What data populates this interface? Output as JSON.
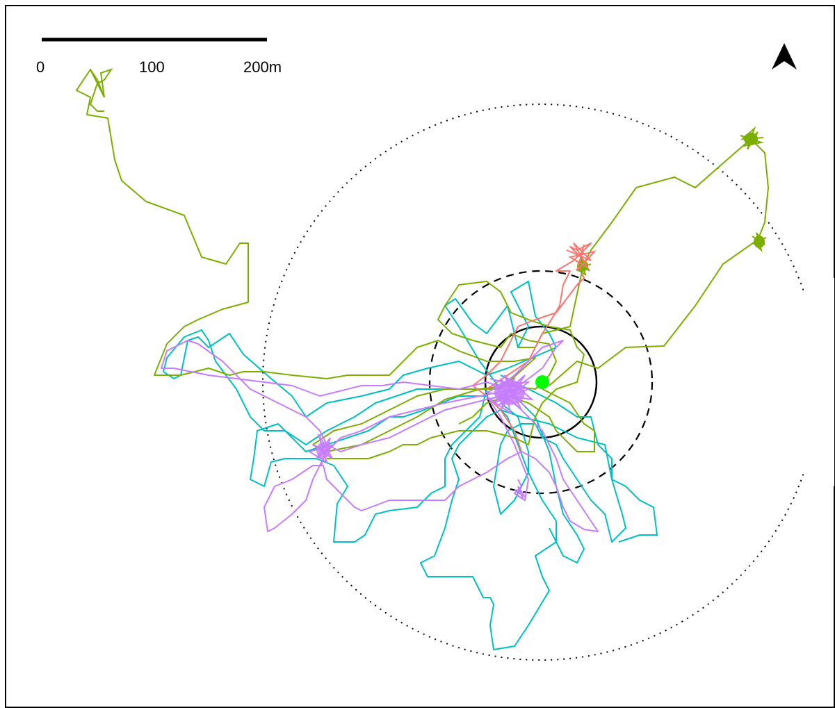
{
  "scale_bar": {
    "labels": [
      "0",
      "100",
      "200m"
    ]
  },
  "north_arrow": {
    "icon": "north-arrow-icon"
  },
  "colors": {
    "track_red": "#F8766D",
    "track_olive": "#7CAE00",
    "track_cyan": "#00BFC4",
    "track_purple": "#C77CFF",
    "center_point": "#00FF00",
    "rings": "#000000"
  },
  "rings": [
    {
      "style": "solid"
    },
    {
      "style": "dashed"
    },
    {
      "style": "dotted"
    }
  ]
}
